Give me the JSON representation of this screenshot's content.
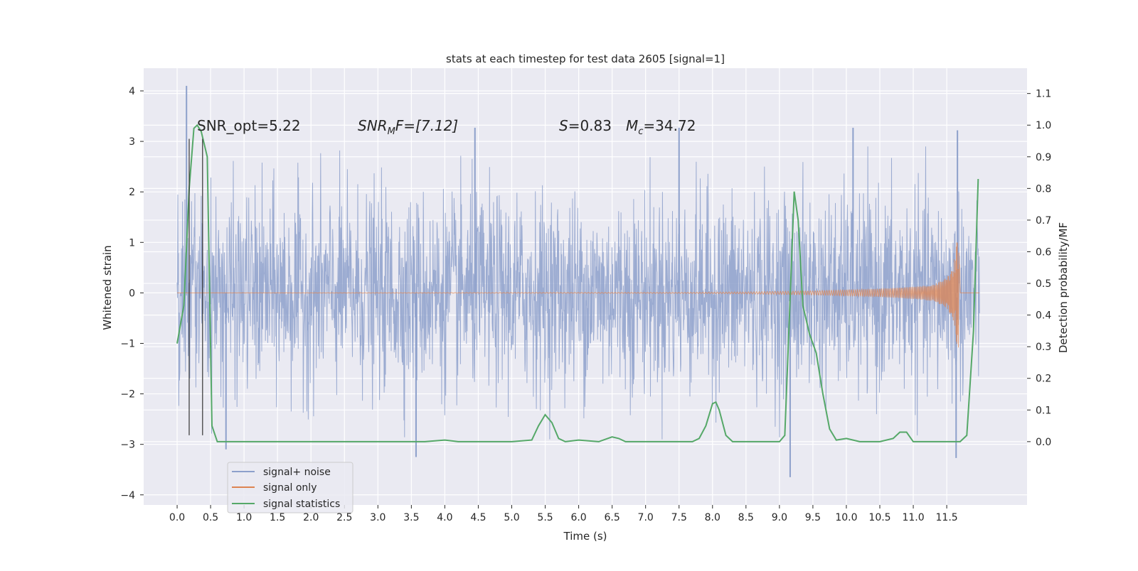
{
  "chart_data": {
    "type": "line",
    "title": "stats at each timestep for test data 2605 [signal=1]",
    "xlabel": "Time (s)",
    "ylabel": "Whitened strain",
    "ylabel_right": "Detection probability/MF",
    "xlim": [
      -0.5,
      12.7
    ],
    "ylim": [
      -4.2,
      4.45
    ],
    "ylim_right": [
      -0.2,
      1.18
    ],
    "xticks": [
      0.0,
      0.5,
      1.0,
      1.5,
      2.0,
      2.5,
      3.0,
      3.5,
      4.0,
      4.5,
      5.0,
      5.5,
      6.0,
      6.5,
      7.0,
      7.5,
      8.0,
      8.5,
      9.0,
      9.5,
      10.0,
      10.5,
      11.0,
      11.5
    ],
    "xtick_labels": [
      "0.0",
      "0.5",
      "1.0",
      "1.5",
      "2.0",
      "2.5",
      "3.0",
      "3.5",
      "4.0",
      "4.5",
      "5.0",
      "5.5",
      "6.0",
      "6.5",
      "7.0",
      "7.5",
      "8.0",
      "8.5",
      "9.0",
      "9.5",
      "10.0",
      "10.5",
      "11.0",
      "11.5"
    ],
    "yticks": [
      -4,
      -3,
      -2,
      -1,
      0,
      1,
      2,
      3,
      4
    ],
    "ytick_labels": [
      "−4",
      "−3",
      "−2",
      "−1",
      "0",
      "1",
      "2",
      "3",
      "4"
    ],
    "yticks_right": [
      0.0,
      0.1,
      0.2,
      0.3,
      0.4,
      0.5,
      0.6,
      0.7,
      0.8,
      0.9,
      1.0,
      1.1
    ],
    "ytick_labels_right": [
      "0.0",
      "0.1",
      "0.2",
      "0.3",
      "0.4",
      "0.5",
      "0.6",
      "0.7",
      "0.8",
      "0.9",
      "1.0",
      "1.1"
    ],
    "grid": true,
    "legend_position": "lower-left",
    "annotations": {
      "snr_opt": "SNR_opt=5.22",
      "snr_mf_main": "SNR",
      "snr_mf_sub": "M",
      "snr_mf_rest": "F=[7.12]",
      "s_label": "S",
      "s_value": "=0.83",
      "mc_label": "M",
      "mc_sub": "c",
      "mc_value": "=34.72"
    },
    "vlines_x": [
      0.18,
      0.38
    ],
    "vlines_yrange": [
      -2.82,
      3.05
    ],
    "noise_envelope": {
      "x_range": [
        0.0,
        11.99
      ],
      "typical_max": 1.45,
      "typical_min": -1.6,
      "peaks": [
        {
          "x": 0.14,
          "y": 4.1
        },
        {
          "x": 0.73,
          "y": -3.1
        },
        {
          "x": 3.57,
          "y": -3.25
        },
        {
          "x": 4.45,
          "y": 3.27
        },
        {
          "x": 9.16,
          "y": -3.65
        },
        {
          "x": 11.64,
          "y": -3.27
        },
        {
          "x": 11.66,
          "y": 3.22
        },
        {
          "x": 10.1,
          "y": 3.27
        },
        {
          "x": 7.5,
          "y": 3.27
        }
      ]
    },
    "series": [
      {
        "name": "signal+ noise",
        "color": "#8da0cb",
        "x_range": [
          0.0,
          11.99
        ],
        "note": "dense whitened strain noise"
      },
      {
        "name": "signal only",
        "color": "#dd8452",
        "x": [
          0.0,
          7.5,
          8.5,
          9.5,
          10.0,
          10.5,
          11.0,
          11.3,
          11.5,
          11.6,
          11.65,
          11.68,
          11.7
        ],
        "amplitude": [
          0.0,
          0.01,
          0.02,
          0.04,
          0.06,
          0.08,
          0.12,
          0.16,
          0.3,
          0.55,
          1.0,
          1.1,
          0.05
        ]
      },
      {
        "name": "signal statistics",
        "color": "#55a868",
        "x": [
          0.0,
          0.1,
          0.18,
          0.25,
          0.3,
          0.36,
          0.45,
          0.52,
          0.6,
          0.7,
          1.0,
          3.0,
          3.4,
          3.5,
          3.7,
          4.0,
          4.2,
          5.0,
          5.3,
          5.4,
          5.5,
          5.6,
          5.7,
          5.8,
          6.0,
          6.3,
          6.5,
          6.6,
          6.7,
          7.0,
          7.7,
          7.8,
          7.9,
          8.0,
          8.05,
          8.1,
          8.2,
          8.3,
          8.4,
          8.6,
          9.0,
          9.08,
          9.15,
          9.22,
          9.28,
          9.35,
          9.45,
          9.55,
          9.65,
          9.75,
          9.85,
          10.0,
          10.2,
          10.5,
          10.7,
          10.8,
          10.9,
          11.0,
          11.3,
          11.7,
          11.8,
          11.9,
          11.97
        ],
        "y": [
          0.31,
          0.43,
          0.8,
          0.99,
          1.0,
          0.98,
          0.9,
          0.05,
          0.0,
          0.0,
          0.0,
          0.0,
          0.0,
          0.0,
          0.0,
          0.005,
          0.0,
          0.0,
          0.005,
          0.05,
          0.085,
          0.06,
          0.01,
          0.0,
          0.005,
          0.0,
          0.015,
          0.01,
          0.0,
          0.0,
          0.0,
          0.01,
          0.05,
          0.12,
          0.125,
          0.1,
          0.02,
          0.0,
          0.0,
          0.0,
          0.0,
          0.02,
          0.4,
          0.79,
          0.7,
          0.43,
          0.34,
          0.28,
          0.15,
          0.04,
          0.005,
          0.01,
          0.0,
          0.0,
          0.01,
          0.03,
          0.03,
          0.0,
          0.0,
          0.0,
          0.02,
          0.35,
          0.83
        ]
      }
    ]
  }
}
